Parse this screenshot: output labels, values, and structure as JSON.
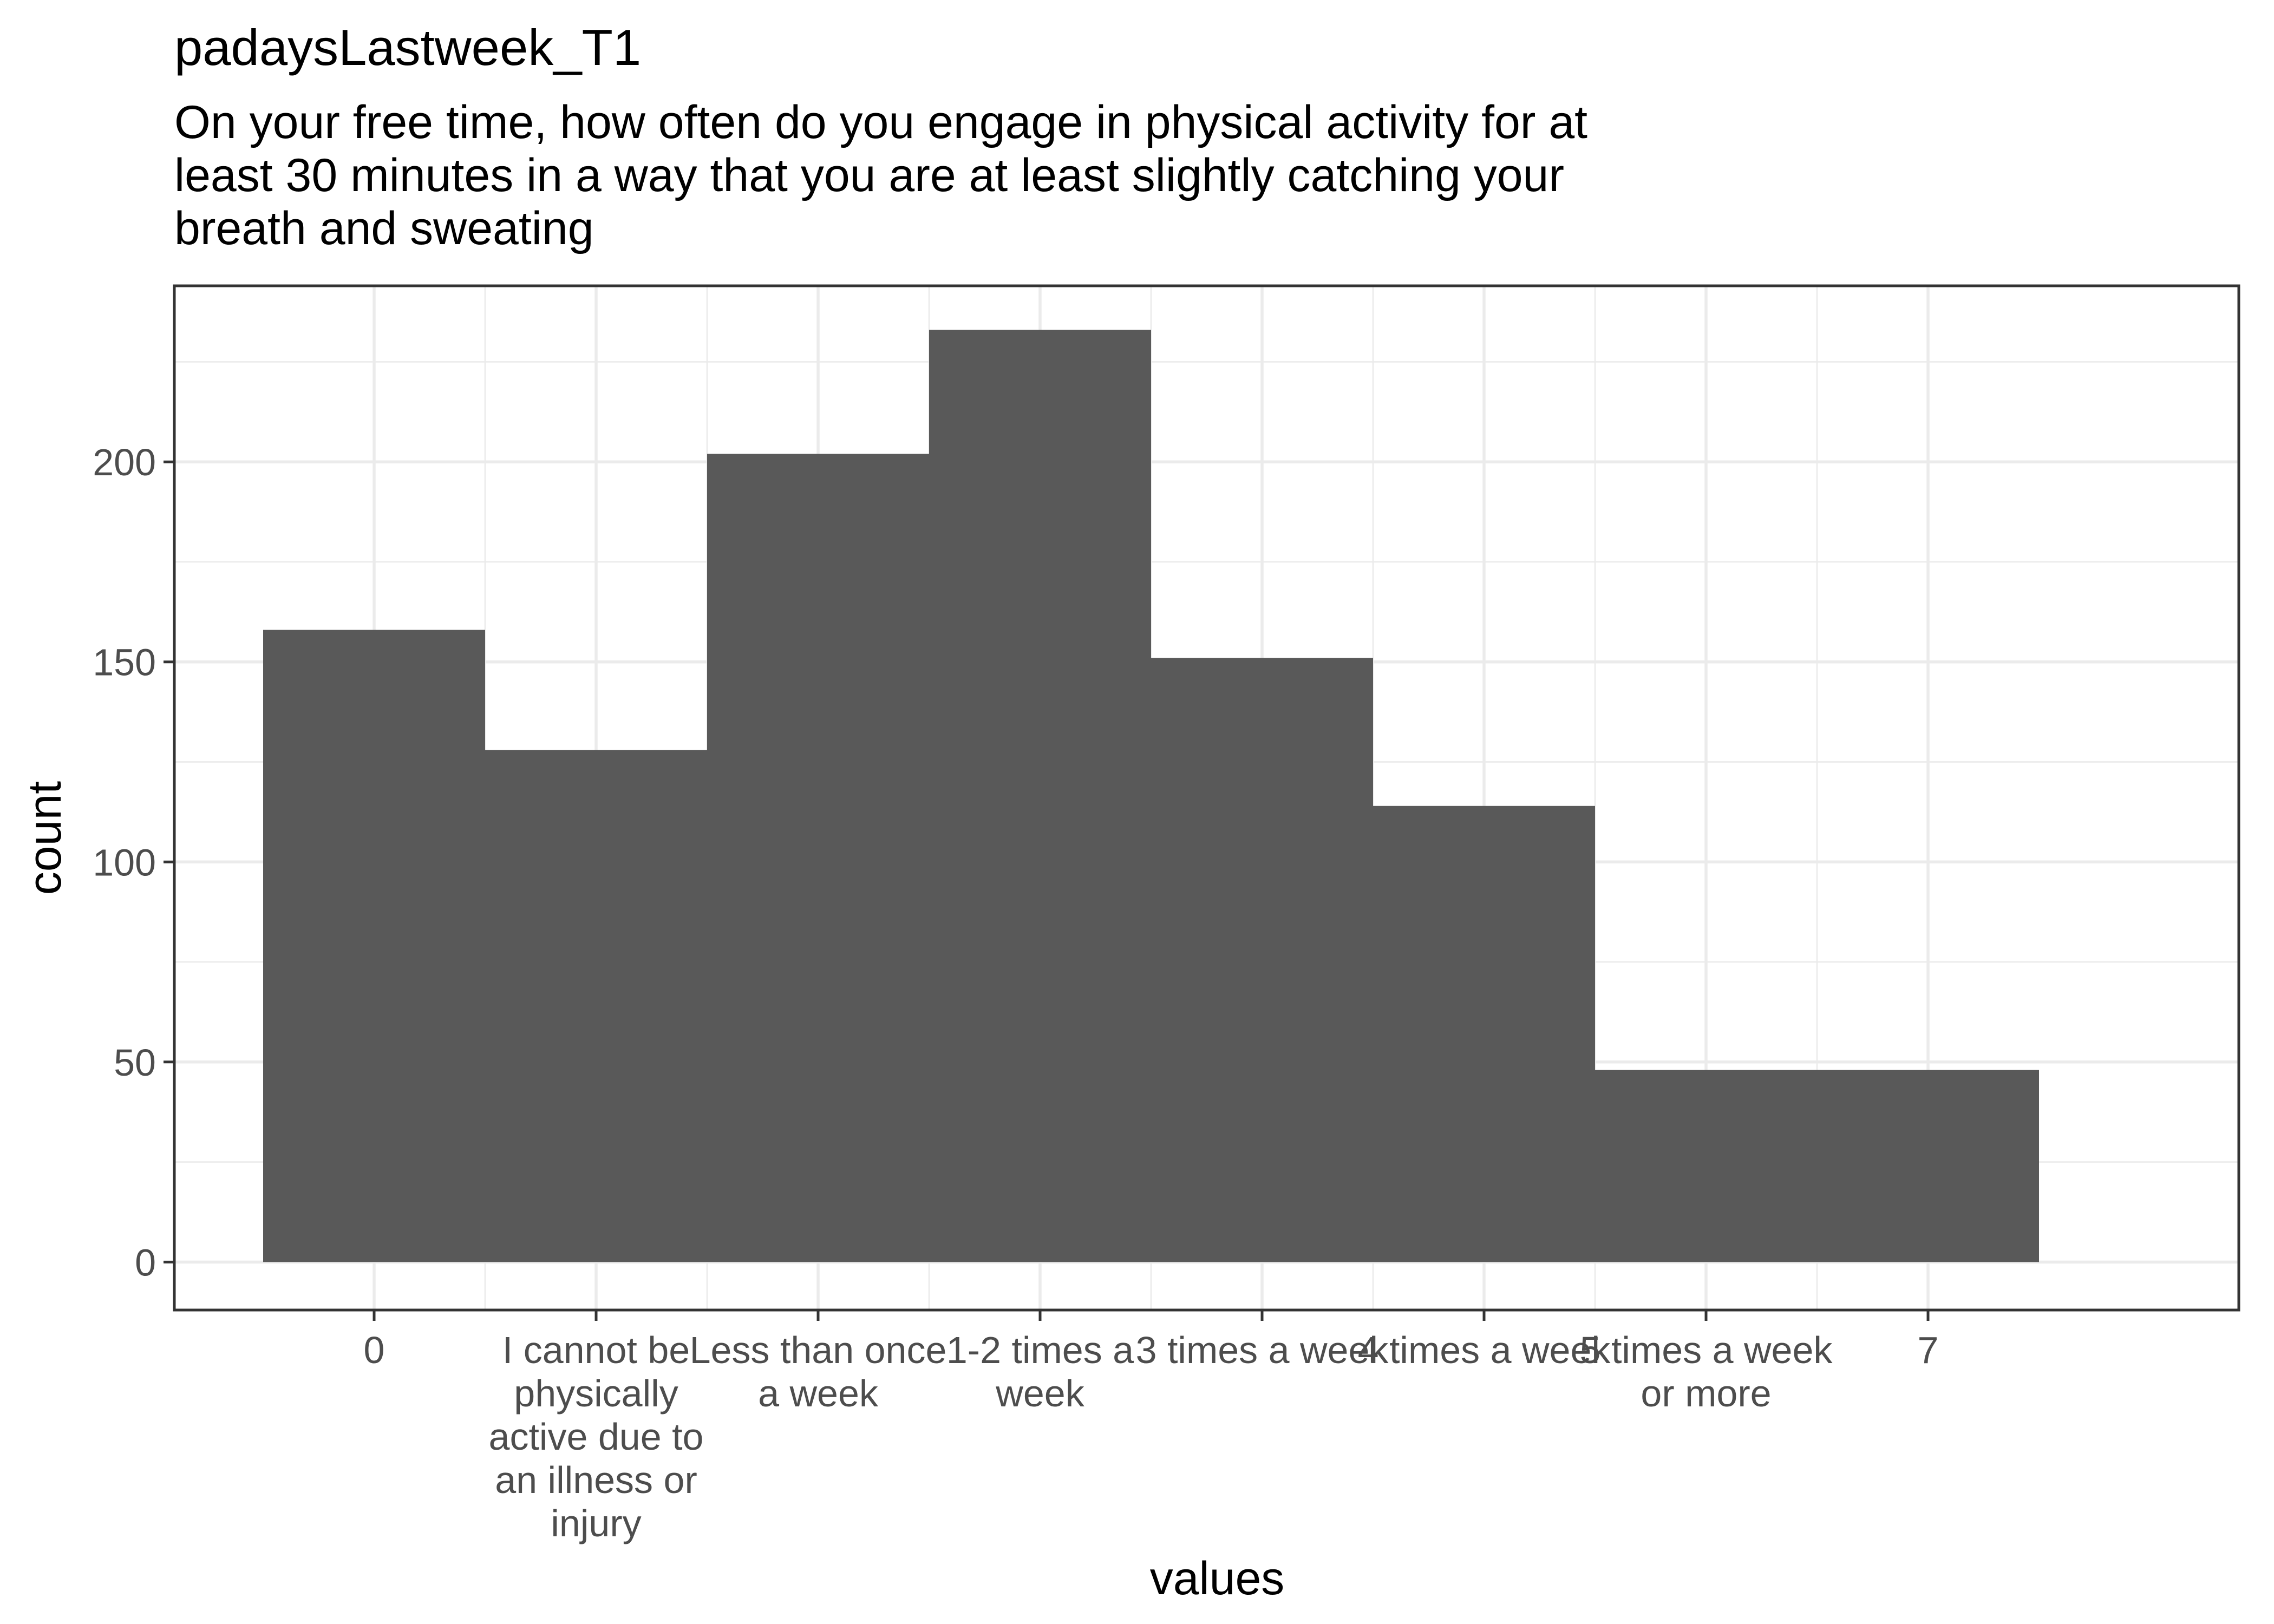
{
  "chart_data": {
    "type": "bar",
    "title": "padaysLastweek_T1",
    "subtitle": [
      "On your free time, how often do you engage in physical activity for at",
      "least 30 minutes in a way that you are at least slightly catching your",
      "breath and sweating"
    ],
    "xlabel": "values",
    "ylabel": "count",
    "ylim": [
      -12,
      244
    ],
    "yticks": [
      0,
      50,
      100,
      150,
      200
    ],
    "grid": true,
    "bar_color": "#595959",
    "categories": [
      [
        "0"
      ],
      [
        "I cannot be",
        "physically",
        "active due to",
        "an illness or",
        "injury"
      ],
      [
        "Less than once",
        "a week"
      ],
      [
        "1-2 times a",
        "week"
      ],
      [
        "3 times a week"
      ],
      [
        "4 times a week"
      ],
      [
        "5 times a week",
        "or more"
      ],
      [
        "7"
      ]
    ],
    "bars": [
      {
        "x_start": 0,
        "x_end": 1,
        "value": 158
      },
      {
        "x_start": 1,
        "x_end": 2,
        "value": 128
      },
      {
        "x_start": 2,
        "x_end": 3,
        "value": 202
      },
      {
        "x_start": 3,
        "x_end": 4,
        "value": 233
      },
      {
        "x_start": 4,
        "x_end": 5,
        "value": 151
      },
      {
        "x_start": 5,
        "x_end": 6,
        "value": 114
      },
      {
        "x_start": 6,
        "x_end": 8,
        "value": 48
      }
    ]
  }
}
